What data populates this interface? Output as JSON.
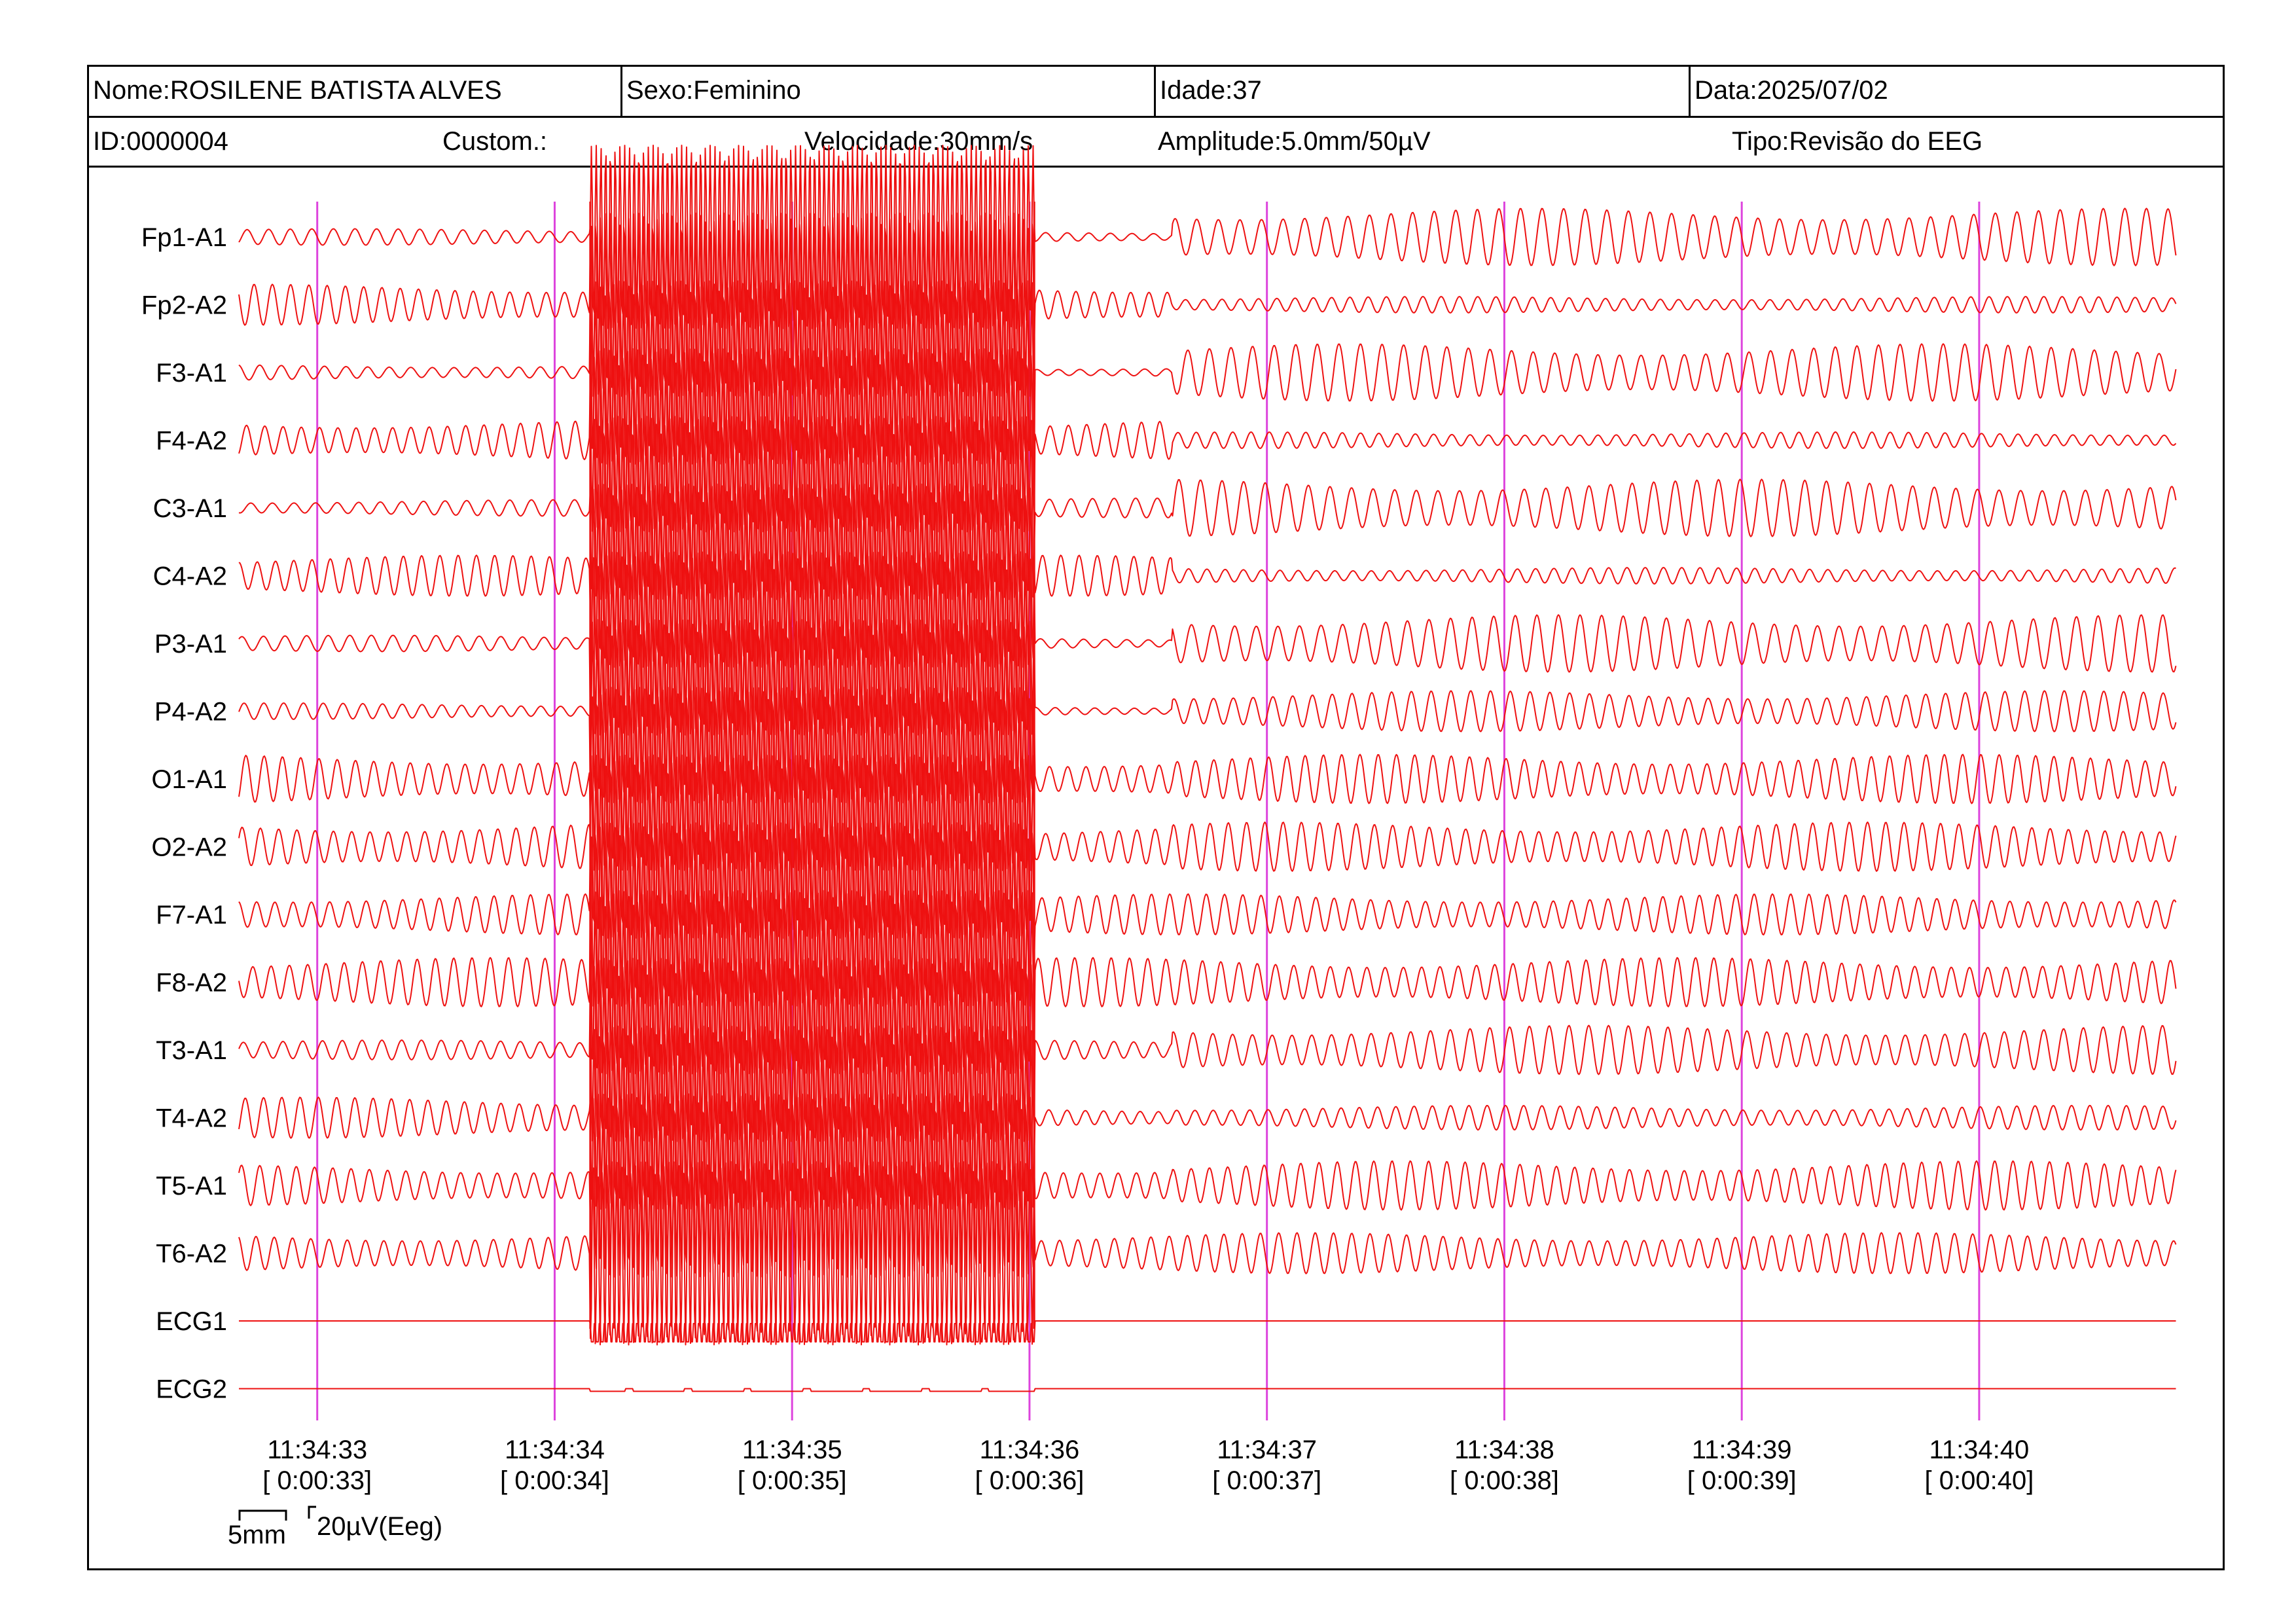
{
  "header": {
    "nome": "Nome:ROSILENE BATISTA ALVES",
    "sexo": "Sexo:Feminino",
    "idade": "Idade:37",
    "data": "Data:2025/07/02",
    "id": "ID:0000004",
    "custom": "Custom.:",
    "velocidade": "Velocidade:30mm/s",
    "amplitude": "Amplitude:5.0mm/50µV",
    "tipo": "Tipo:Revisão do EEG"
  },
  "scale": {
    "time_label": "5mm",
    "amp_label": "20µV(Eeg)"
  },
  "colors": {
    "trace": "#ee1111",
    "marker": "#dd44dd",
    "frame": "#000000"
  },
  "chart_data": {
    "type": "line",
    "channels": [
      "Fp1-A1",
      "Fp2-A2",
      "F3-A1",
      "F4-A2",
      "C3-A1",
      "C4-A2",
      "P3-A1",
      "P4-A2",
      "O1-A1",
      "O2-A2",
      "F7-A1",
      "F8-A2",
      "T3-A1",
      "T4-A2",
      "T5-A1",
      "T6-A2",
      "ECG1",
      "ECG2"
    ],
    "time_ticks": [
      {
        "clock": "11:34:33",
        "elapsed": "[ 0:00:33]",
        "t": 33
      },
      {
        "clock": "11:34:34",
        "elapsed": "[ 0:00:34]",
        "t": 34
      },
      {
        "clock": "11:34:35",
        "elapsed": "[ 0:00:35]",
        "t": 35
      },
      {
        "clock": "11:34:36",
        "elapsed": "[ 0:00:36]",
        "t": 36
      },
      {
        "clock": "11:34:37",
        "elapsed": "[ 0:00:37]",
        "t": 37
      },
      {
        "clock": "11:34:38",
        "elapsed": "[ 0:00:38]",
        "t": 38
      },
      {
        "clock": "11:34:39",
        "elapsed": "[ 0:00:39]",
        "t": 39
      },
      {
        "clock": "11:34:40",
        "elapsed": "[ 0:00:40]",
        "t": 40
      }
    ],
    "t_range": [
      32.67,
      40.83
    ],
    "artifact_t_range": [
      34.15,
      36.02
    ],
    "segments": [
      {
        "t_start": 32.67,
        "t_end": 34.15,
        "amp_uv": [
          10,
          25,
          10,
          25,
          10,
          25,
          10,
          10,
          30,
          30,
          25,
          30,
          12,
          25,
          25,
          25,
          0,
          0
        ]
      },
      {
        "t_start": 34.15,
        "t_end": 36.02,
        "amp_uv": [
          "saturated",
          "saturated",
          "saturated",
          "saturated",
          "saturated",
          "saturated",
          "saturated",
          "saturated",
          "saturated",
          "saturated",
          "saturated",
          "saturated",
          "saturated",
          "saturated",
          "saturated",
          "saturated",
          "saturated",
          "low"
        ]
      },
      {
        "t_start": 36.02,
        "t_end": 36.6,
        "amp_uv": [
          6,
          25,
          6,
          25,
          12,
          25,
          6,
          6,
          25,
          25,
          25,
          30,
          12,
          12,
          25,
          25,
          0,
          0
        ]
      },
      {
        "t_start": 36.6,
        "t_end": 40.83,
        "amp_uv": [
          35,
          10,
          35,
          10,
          35,
          10,
          35,
          25,
          30,
          30,
          25,
          30,
          30,
          15,
          30,
          25,
          0,
          0
        ]
      }
    ]
  }
}
